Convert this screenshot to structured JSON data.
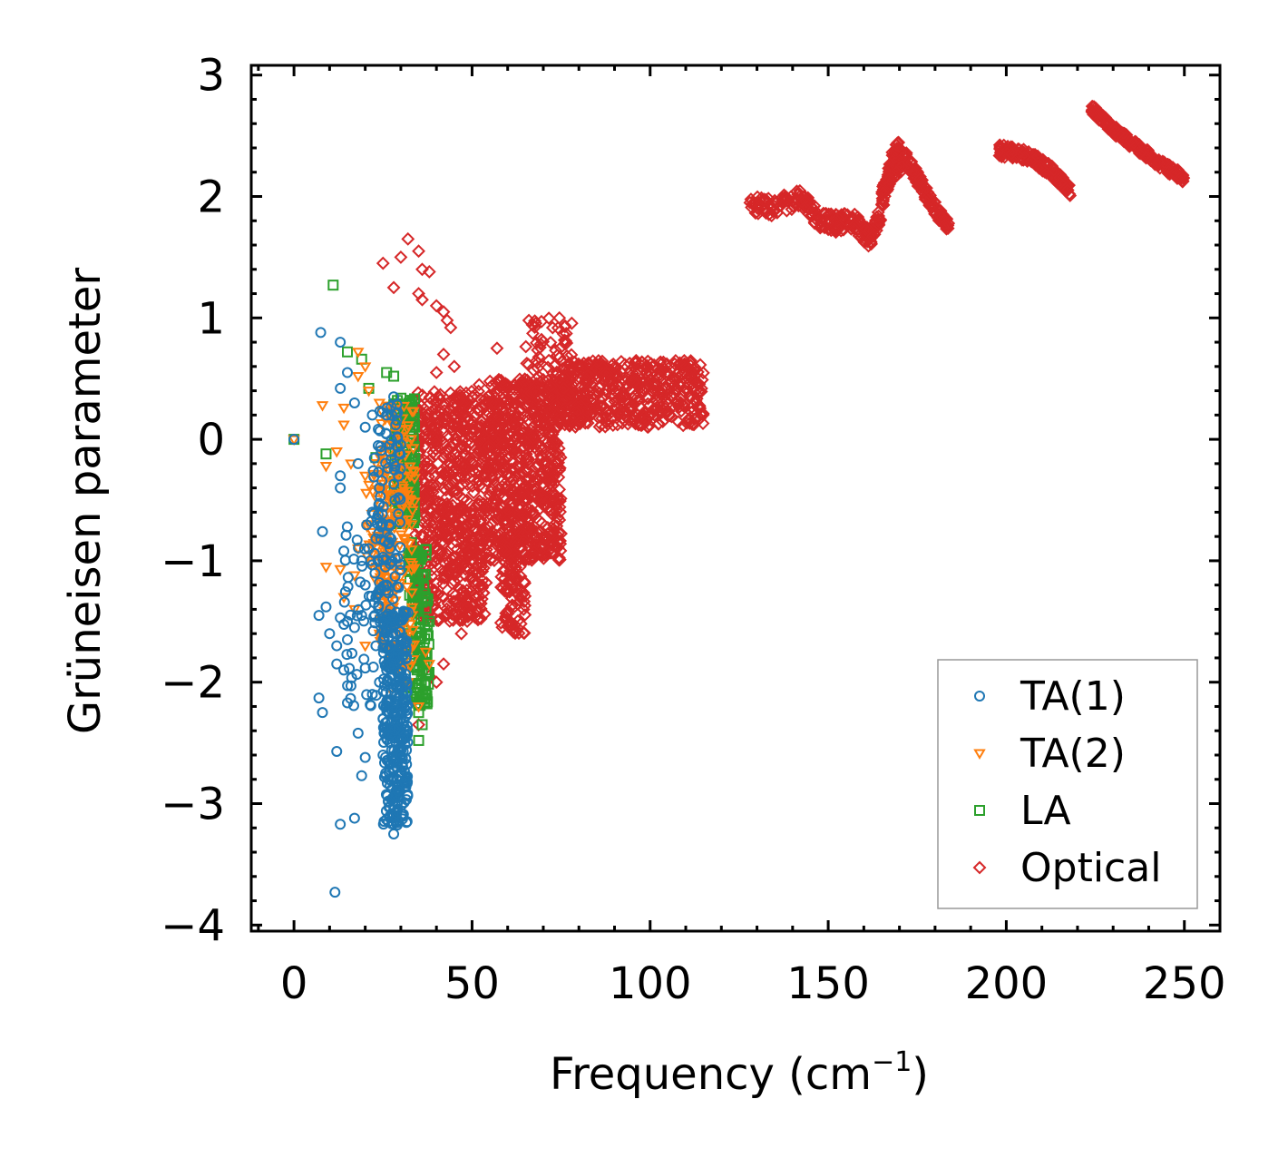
{
  "chart_data": {
    "type": "scatter",
    "title": "",
    "xlabel": "Frequency (cm",
    "xlabel_sup": "−1",
    "xlabel_suffix": ")",
    "ylabel": "Grüneisen parameter",
    "xlim": [
      -12,
      260
    ],
    "ylim": [
      -4.05,
      3.08
    ],
    "xticks": [
      0,
      50,
      100,
      150,
      200,
      250
    ],
    "xtick_labels": [
      "0",
      "50",
      "100",
      "150",
      "200",
      "250"
    ],
    "yticks": [
      3,
      2,
      1,
      0,
      -1,
      -2,
      -3,
      -4
    ],
    "ytick_labels": [
      "3",
      "2",
      "1",
      "0",
      "−1",
      "−2",
      "−3",
      "−4"
    ],
    "grid": false,
    "legend_position": "bottom-right",
    "series": [
      {
        "name": "TA(1)",
        "marker": "circle",
        "color": "#1f77b4",
        "points": [
          [
            0,
            0
          ],
          [
            7.5,
            0.88
          ],
          [
            13,
            0.8
          ],
          [
            15,
            0.55
          ],
          [
            13,
            0.42
          ],
          [
            17,
            0.3
          ],
          [
            20,
            0.1
          ],
          [
            22,
            0.2
          ],
          [
            18,
            -0.2
          ],
          [
            13,
            -0.3
          ],
          [
            13,
            -0.4
          ],
          [
            8,
            -0.76
          ],
          [
            14,
            -0.92
          ],
          [
            19,
            -1.0
          ],
          [
            20,
            -1.2
          ],
          [
            23,
            -1.3
          ],
          [
            7,
            -1.45
          ],
          [
            9,
            -1.38
          ],
          [
            10,
            -1.6
          ],
          [
            12,
            -1.7
          ],
          [
            13,
            -1.47
          ],
          [
            15,
            -1.65
          ],
          [
            15,
            -1.5
          ],
          [
            17,
            -1.55
          ],
          [
            19,
            -1.45
          ],
          [
            12,
            -1.85
          ],
          [
            14,
            -1.9
          ],
          [
            16,
            -2.03
          ],
          [
            7,
            -2.13
          ],
          [
            8,
            -2.25
          ],
          [
            15,
            -2.17
          ],
          [
            18,
            -2.42
          ],
          [
            12,
            -2.57
          ],
          [
            20,
            -2.62
          ],
          [
            19,
            -2.77
          ],
          [
            17,
            -3.12
          ],
          [
            13,
            -3.17
          ],
          [
            11.5,
            -3.73
          ],
          [
            25,
            -2.3
          ],
          [
            24,
            -2.0
          ],
          [
            22,
            -2.1
          ],
          [
            26,
            -1.9
          ],
          [
            23,
            -1.7
          ],
          [
            25,
            -1.5
          ],
          [
            26,
            -1.2
          ],
          [
            27,
            -0.9
          ],
          [
            24,
            -0.4
          ],
          [
            28,
            -0.2
          ],
          [
            26,
            0.2
          ],
          [
            28,
            0.35
          ],
          [
            22,
            -0.6
          ],
          [
            21,
            -0.9
          ],
          [
            25,
            -2.6
          ],
          [
            27,
            -2.85
          ],
          [
            28,
            -3.05
          ],
          [
            28,
            -3.25
          ],
          [
            29,
            -3.0
          ],
          [
            29,
            -2.7
          ],
          [
            30,
            -2.4
          ],
          [
            30,
            -2.2
          ]
        ],
        "clusters": [
          {
            "x_range": [
              25,
              32
            ],
            "y_range": [
              -3.2,
              -1.4
            ],
            "count": 340
          },
          {
            "x_range": [
              22,
              30
            ],
            "y_range": [
              -1.6,
              0.3
            ],
            "count": 110
          },
          {
            "x_range": [
              14,
              24
            ],
            "y_range": [
              -2.2,
              -0.6
            ],
            "count": 45
          }
        ]
      },
      {
        "name": "TA(2)",
        "marker": "triangle-down",
        "color": "#ff7f0e",
        "points": [
          [
            0,
            0
          ],
          [
            8,
            0.28
          ],
          [
            9,
            -0.22
          ],
          [
            12,
            -0.1
          ],
          [
            14,
            0.12
          ],
          [
            14,
            0.26
          ],
          [
            18,
            0.72
          ],
          [
            20,
            0.6
          ],
          [
            18,
            0.52
          ],
          [
            21,
            0.4
          ],
          [
            24,
            0.3
          ],
          [
            9,
            -1.05
          ],
          [
            13,
            -1.07
          ],
          [
            17,
            -1.12
          ],
          [
            16,
            -0.2
          ],
          [
            20,
            -0.3
          ],
          [
            18,
            -0.9
          ],
          [
            14,
            -1.3
          ],
          [
            17,
            -1.4
          ],
          [
            20,
            -1.7
          ],
          [
            21,
            -0.7
          ],
          [
            24,
            -1.6
          ],
          [
            28,
            -2.1
          ],
          [
            30,
            -1.9
          ],
          [
            32,
            -2.0
          ],
          [
            35,
            -2.2
          ],
          [
            37,
            -1.75
          ],
          [
            38,
            -1.85
          ]
        ],
        "clusters": [
          {
            "x_range": [
              24,
              34
            ],
            "y_range": [
              -1.9,
              0.3
            ],
            "count": 230
          },
          {
            "x_range": [
              20,
              28
            ],
            "y_range": [
              -1.2,
              0.0
            ],
            "count": 50
          }
        ]
      },
      {
        "name": "LA",
        "marker": "square",
        "color": "#2ca02c",
        "points": [
          [
            0,
            0
          ],
          [
            9,
            -0.12
          ],
          [
            11,
            1.27
          ],
          [
            15,
            0.72
          ],
          [
            19,
            0.66
          ],
          [
            21,
            0.42
          ],
          [
            26,
            0.55
          ],
          [
            28,
            0.52
          ],
          [
            23,
            -0.15
          ],
          [
            26,
            -0.72
          ],
          [
            33,
            -0.85
          ],
          [
            35,
            -1.4
          ],
          [
            36,
            -1.75
          ],
          [
            35,
            -2.25
          ],
          [
            35,
            -2.48
          ],
          [
            36,
            -2.35
          ],
          [
            37,
            -1.9
          ],
          [
            38,
            -1.5
          ],
          [
            30,
            -0.45
          ],
          [
            31,
            -0.2
          ]
        ],
        "clusters": [
          {
            "x_range": [
              28,
              34
            ],
            "y_range": [
              -0.7,
              0.35
            ],
            "count": 160
          },
          {
            "x_range": [
              32,
              38
            ],
            "y_range": [
              -2.2,
              -0.9
            ],
            "count": 140
          }
        ]
      },
      {
        "name": "Optical",
        "marker": "diamond",
        "color": "#d62728",
        "points": [
          [
            25,
            1.45
          ],
          [
            28,
            1.25
          ],
          [
            30,
            1.5
          ],
          [
            32,
            1.65
          ],
          [
            35,
            1.55
          ],
          [
            36,
            1.4
          ],
          [
            38,
            1.38
          ],
          [
            35,
            1.2
          ],
          [
            36,
            1.15
          ],
          [
            40,
            1.1
          ],
          [
            42,
            1.05
          ],
          [
            43,
            0.98
          ],
          [
            44,
            0.92
          ],
          [
            42,
            0.7
          ],
          [
            45,
            0.6
          ],
          [
            48,
            0.3
          ],
          [
            52,
            0.45
          ],
          [
            50,
            0.35
          ],
          [
            57,
            0.75
          ],
          [
            40,
            0.55
          ],
          [
            48,
            0.12
          ],
          [
            55,
            -0.2
          ],
          [
            46,
            -0.6
          ],
          [
            47,
            -1.6
          ],
          [
            42,
            -1.85
          ],
          [
            40,
            -2.0
          ],
          [
            35,
            -2.35
          ],
          [
            38,
            -1.95
          ],
          [
            48,
            -0.25
          ],
          [
            56,
            -0.6
          ]
        ],
        "clusters": [
          {
            "x_range": [
              34,
              54
            ],
            "y_range": [
              -1.5,
              0.4
            ],
            "count": 700
          },
          {
            "x_range": [
              54,
              75
            ],
            "y_range": [
              -1.0,
              0.5
            ],
            "count": 700
          },
          {
            "x_range": [
              58,
              65
            ],
            "y_range": [
              -1.6,
              -0.7
            ],
            "count": 120
          },
          {
            "x_range": [
              75,
              115
            ],
            "y_range": [
              0.1,
              0.65
            ],
            "count": 500
          },
          {
            "x_range": [
              65,
              78
            ],
            "y_range": [
              0.3,
              1.0
            ],
            "count": 80
          }
        ],
        "curves": [
          {
            "x": [
              128,
              135,
              142,
              147,
              152,
              157,
              160,
              162,
              165,
              168,
              170
            ],
            "y": [
              1.95,
              1.9,
              2.0,
              1.82,
              1.78,
              1.8,
              1.7,
              1.65,
              1.9,
              2.3,
              2.4
            ],
            "width": 0.15,
            "count": 300
          },
          {
            "x": [
              165,
              168,
              172,
              176,
              180,
              184
            ],
            "y": [
              2.0,
              2.2,
              2.3,
              2.1,
              1.9,
              1.75
            ],
            "width": 0.12,
            "count": 160
          },
          {
            "x": [
              198,
              203,
              208,
              213,
              218
            ],
            "y": [
              2.38,
              2.36,
              2.3,
              2.2,
              2.05
            ],
            "width": 0.1,
            "count": 150
          },
          {
            "x": [
              224,
              230,
              238,
              244,
              250
            ],
            "y": [
              2.72,
              2.55,
              2.38,
              2.25,
              2.15
            ],
            "width": 0.08,
            "count": 180
          }
        ]
      }
    ]
  }
}
